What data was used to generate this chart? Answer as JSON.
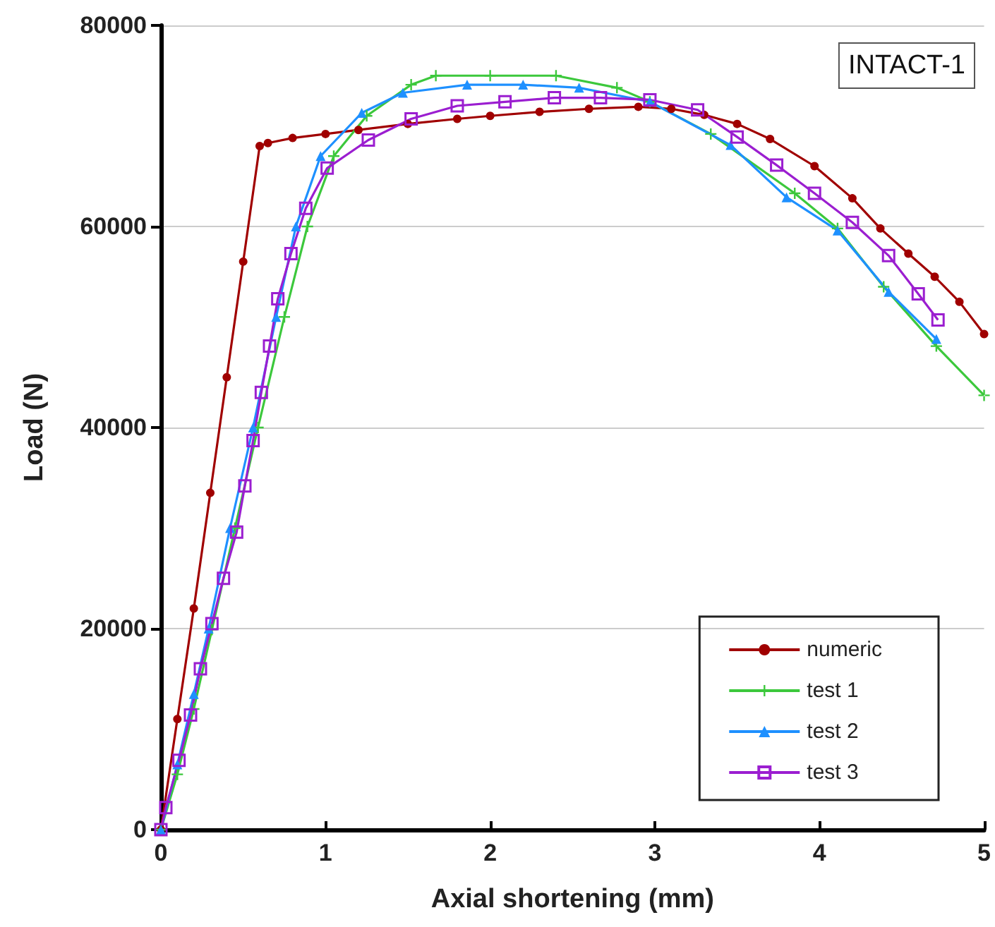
{
  "chart_data": {
    "type": "line",
    "xlabel": "Axial shortening (mm)",
    "ylabel": "Load (N)",
    "annotations": [
      "INTACT-1"
    ],
    "xlim": [
      0,
      5
    ],
    "xticks": [
      0,
      1,
      2,
      3,
      4,
      5
    ],
    "ylim": [
      0,
      80000
    ],
    "yticks": [
      0,
      20000,
      40000,
      60000,
      80000
    ],
    "grid": "y",
    "legend": "bottom right",
    "line_style": "solid",
    "series": [
      {
        "name": "numeric",
        "color": "#a00000",
        "marker": "circle",
        "x": [
          0,
          0.1,
          0.2,
          0.3,
          0.4,
          0.5,
          0.6,
          0.65,
          0.8,
          1,
          1.2,
          1.5,
          1.8,
          2,
          2.3,
          2.6,
          2.9,
          3.1,
          3.3,
          3.5,
          3.7,
          3.97,
          4.2,
          4.37,
          4.54,
          4.7,
          4.85,
          5
        ],
        "values": [
          0,
          11000,
          22000,
          33500,
          45000,
          56500,
          68000,
          68300,
          68800,
          69200,
          69600,
          70200,
          70700,
          71000,
          71400,
          71700,
          71900,
          71700,
          71100,
          70200,
          68700,
          66000,
          62800,
          59800,
          57300,
          55000,
          52500,
          49300
        ]
      },
      {
        "name": "test 1",
        "color": "#3cc83c",
        "marker": "cross",
        "x": [
          0,
          0.1,
          0.2,
          0.31,
          0.45,
          0.59,
          0.75,
          0.89,
          1.05,
          1.25,
          1.52,
          1.67,
          2,
          2.4,
          2.77,
          2.97,
          3.34,
          3.85,
          4.11,
          4.39,
          4.71,
          5
        ],
        "values": [
          0,
          5500,
          12000,
          19900,
          30000,
          40000,
          51000,
          60000,
          67000,
          71000,
          74100,
          75000,
          75000,
          75000,
          73800,
          72400,
          69200,
          63300,
          59800,
          54000,
          48100,
          43200
        ]
      },
      {
        "name": "test 2",
        "color": "#1e90ff",
        "marker": "triangle",
        "x": [
          0,
          0.1,
          0.2,
          0.29,
          0.42,
          0.56,
          0.7,
          0.82,
          0.97,
          1.22,
          1.47,
          1.86,
          2.2,
          2.54,
          2.97,
          3.46,
          3.8,
          4.11,
          4.42,
          4.71
        ],
        "values": [
          0,
          6500,
          13500,
          20000,
          30000,
          40000,
          51000,
          60000,
          67000,
          71300,
          73300,
          74100,
          74100,
          73800,
          72400,
          68100,
          62900,
          59600,
          53500,
          48800
        ]
      },
      {
        "name": "test 3",
        "color": "#9b1ed0",
        "marker": "square",
        "x": [
          0,
          0.03,
          0.11,
          0.18,
          0.24,
          0.31,
          0.38,
          0.46,
          0.51,
          0.56,
          0.61,
          0.66,
          0.71,
          0.79,
          0.88,
          1.01,
          1.26,
          1.52,
          1.8,
          2.09,
          2.39,
          2.67,
          2.97,
          3.26,
          3.5,
          3.74,
          3.97,
          4.2,
          4.42,
          4.6,
          4.72
        ],
        "values": [
          0,
          2200,
          6900,
          11400,
          16000,
          20500,
          25000,
          29600,
          34200,
          38700,
          43500,
          48100,
          52800,
          57300,
          61800,
          65800,
          68600,
          70700,
          72000,
          72400,
          72800,
          72800,
          72600,
          71600,
          68900,
          66100,
          63300,
          60400,
          57100,
          53300,
          50700
        ]
      }
    ]
  }
}
